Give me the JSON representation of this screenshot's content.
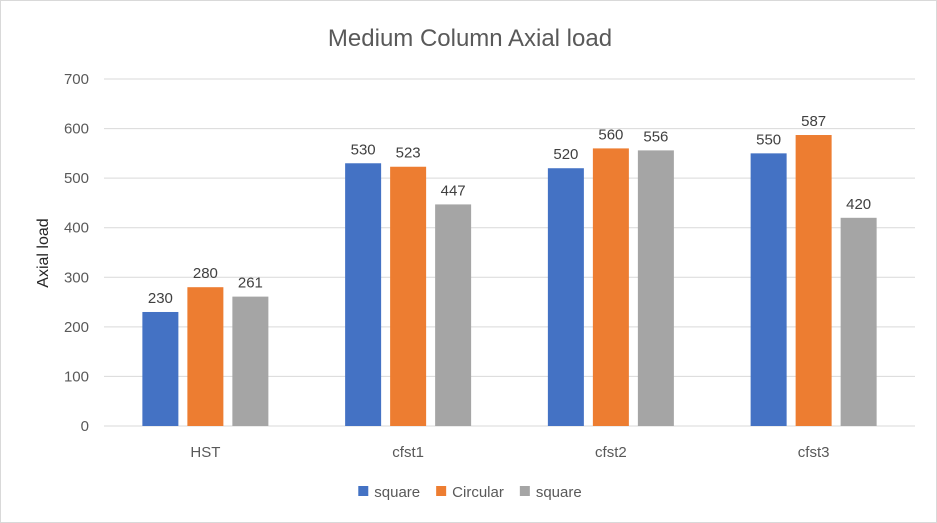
{
  "chart_data": {
    "type": "bar",
    "title": "Medium Column  Axial load",
    "xlabel": "",
    "ylabel": "Axial load",
    "categories": [
      "HST",
      "cfst1",
      "cfst2",
      "cfst3"
    ],
    "series": [
      {
        "name": "square",
        "color": "#4472C4",
        "values": [
          230,
          530,
          520,
          550
        ]
      },
      {
        "name": "Circular",
        "color": "#ED7D31",
        "values": [
          280,
          523,
          560,
          587
        ]
      },
      {
        "name": "square",
        "color": "#A5A5A5",
        "values": [
          261,
          447,
          556,
          420
        ]
      }
    ],
    "ylim": [
      0,
      700
    ],
    "yticks": [
      0,
      100,
      200,
      300,
      400,
      500,
      600,
      700
    ],
    "grid": true,
    "legend_position": "bottom",
    "data_labels": true
  }
}
